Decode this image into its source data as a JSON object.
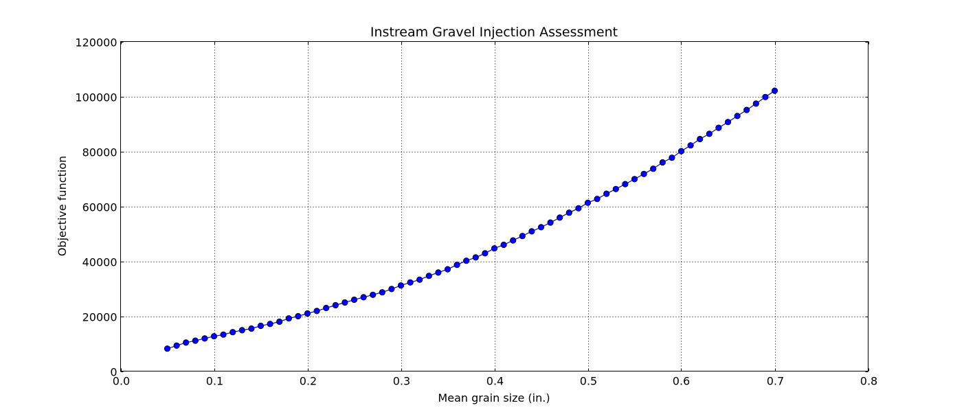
{
  "chart_data": {
    "type": "line",
    "title": "Instream Gravel Injection Assessment",
    "xlabel": "Mean grain size (in.)",
    "ylabel": "Objective function",
    "xlim": [
      0,
      0.8
    ],
    "ylim": [
      0,
      120000
    ],
    "x_ticks": [
      "0.0",
      "0.1",
      "0.2",
      "0.3",
      "0.4",
      "0.5",
      "0.6",
      "0.7",
      "0.8"
    ],
    "y_ticks": [
      "0",
      "20000",
      "40000",
      "60000",
      "80000",
      "100000",
      "120000"
    ],
    "grid": true,
    "marker": "circle",
    "colors": {
      "line": "#0000cc",
      "marker_fill": "#0000ff",
      "marker_edge": "#000000",
      "grid": "#000000"
    },
    "series": [
      {
        "x": [
          0.05,
          0.06,
          0.07,
          0.08,
          0.09,
          0.1,
          0.11,
          0.12,
          0.13,
          0.14,
          0.15,
          0.16,
          0.17,
          0.18,
          0.19,
          0.2,
          0.21,
          0.22,
          0.23,
          0.24,
          0.25,
          0.26,
          0.27,
          0.28,
          0.29,
          0.3,
          0.31,
          0.32,
          0.33,
          0.34,
          0.35,
          0.36,
          0.37,
          0.38,
          0.39,
          0.4,
          0.41,
          0.42,
          0.43,
          0.44,
          0.45,
          0.46,
          0.47,
          0.48,
          0.49,
          0.5,
          0.51,
          0.52,
          0.53,
          0.54,
          0.55,
          0.56,
          0.57,
          0.58,
          0.59,
          0.6,
          0.61,
          0.62,
          0.63,
          0.64,
          0.65,
          0.66,
          0.67,
          0.68,
          0.69,
          0.7
        ],
        "values": [
          8200,
          9300,
          10400,
          11100,
          11900,
          12700,
          13300,
          14200,
          14900,
          15500,
          16500,
          17200,
          18000,
          19200,
          20000,
          21000,
          21900,
          23000,
          24000,
          25000,
          26000,
          26900,
          27800,
          28700,
          29900,
          31200,
          32300,
          33300,
          34700,
          35900,
          37100,
          38700,
          40200,
          41400,
          42900,
          44700,
          46000,
          47600,
          49200,
          50900,
          52400,
          54100,
          55900,
          57700,
          59300,
          61300,
          62700,
          64600,
          66300,
          68100,
          69900,
          71800,
          73700,
          76000,
          77700,
          80100,
          82200,
          84500,
          86400,
          88600,
          90700,
          92900,
          95100,
          97400,
          99800,
          102100
        ]
      }
    ]
  }
}
